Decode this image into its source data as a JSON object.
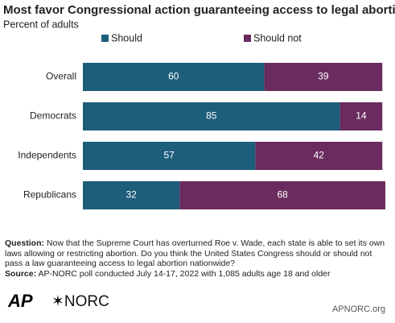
{
  "chart_data": {
    "type": "stacked-bar-horizontal",
    "title": "Most favor Congressional action guaranteeing access to legal abortion.",
    "subtitle": "Percent of adults",
    "categories": [
      "Overall",
      "Democrats",
      "Independents",
      "Republicans"
    ],
    "series": [
      {
        "name": "Should",
        "color": "#1d5e7b",
        "values": [
          60,
          85,
          57,
          32
        ]
      },
      {
        "name": "Should not",
        "color": "#6a2c5e",
        "values": [
          39,
          14,
          42,
          68
        ]
      }
    ],
    "xlim": [
      0,
      100
    ]
  },
  "footer": {
    "question_label": "Question:",
    "question": "Now that the Supreme Court has overturned Roe v. Wade, each state is able to set its own laws allowing or restricting abortion. Do you think the United States Congress should or should not pass a law guaranteeing access to legal abortion nationwide?",
    "source_label": "Source:",
    "source": "AP-NORC poll conducted July 14-17, 2022 with 1,085 adults age 18 and older",
    "logo_ap": "AP",
    "logo_norc": "✶NORC",
    "site": "APNORC.org"
  }
}
